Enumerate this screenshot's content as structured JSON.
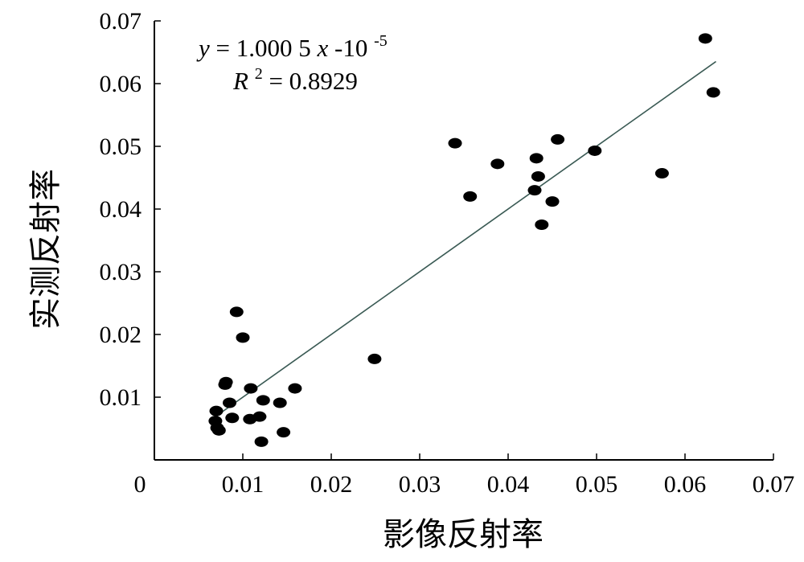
{
  "chart_data": {
    "type": "scatter",
    "xlabel": "影像反射率",
    "ylabel": "实测反射率",
    "xlim": [
      0,
      0.07
    ],
    "ylim": [
      0,
      0.07
    ],
    "x_ticks": [
      "0",
      "0.01",
      "0.02",
      "0.03",
      "0.04",
      "0.05",
      "0.06",
      "0.07"
    ],
    "y_ticks": [
      "0.01",
      "0.02",
      "0.03",
      "0.04",
      "0.05",
      "0.06",
      "0.07"
    ],
    "grid": false,
    "annotation": {
      "equation": {
        "y": "y",
        "equals_coef": " = 1.000 5",
        "x": "x",
        "minus": "-10",
        "exp": "-5"
      },
      "r2": {
        "r": "R",
        "sup": "2",
        "value": " = 0.8929"
      }
    },
    "fit_line": {
      "slope": 1.0005,
      "intercept": -1e-05,
      "x_range": [
        0.0068,
        0.0635
      ]
    },
    "points": [
      {
        "x": 0.007,
        "y": 0.0078
      },
      {
        "x": 0.0069,
        "y": 0.0062
      },
      {
        "x": 0.0073,
        "y": 0.0047
      },
      {
        "x": 0.0071,
        "y": 0.0051
      },
      {
        "x": 0.008,
        "y": 0.012
      },
      {
        "x": 0.0081,
        "y": 0.0124
      },
      {
        "x": 0.0085,
        "y": 0.0091
      },
      {
        "x": 0.0088,
        "y": 0.0067
      },
      {
        "x": 0.0093,
        "y": 0.0236
      },
      {
        "x": 0.01,
        "y": 0.0195
      },
      {
        "x": 0.0109,
        "y": 0.0114
      },
      {
        "x": 0.0108,
        "y": 0.0065
      },
      {
        "x": 0.0119,
        "y": 0.0069
      },
      {
        "x": 0.0123,
        "y": 0.0095
      },
      {
        "x": 0.0121,
        "y": 0.0029
      },
      {
        "x": 0.0142,
        "y": 0.0091
      },
      {
        "x": 0.0146,
        "y": 0.0044
      },
      {
        "x": 0.0159,
        "y": 0.0114
      },
      {
        "x": 0.0249,
        "y": 0.0161
      },
      {
        "x": 0.034,
        "y": 0.0505
      },
      {
        "x": 0.0357,
        "y": 0.042
      },
      {
        "x": 0.0388,
        "y": 0.0472
      },
      {
        "x": 0.043,
        "y": 0.043
      },
      {
        "x": 0.0432,
        "y": 0.0481
      },
      {
        "x": 0.0434,
        "y": 0.0452
      },
      {
        "x": 0.0438,
        "y": 0.0375
      },
      {
        "x": 0.045,
        "y": 0.0412
      },
      {
        "x": 0.0456,
        "y": 0.0511
      },
      {
        "x": 0.0498,
        "y": 0.0493
      },
      {
        "x": 0.0574,
        "y": 0.0457
      },
      {
        "x": 0.0623,
        "y": 0.0672
      },
      {
        "x": 0.0632,
        "y": 0.0586
      }
    ]
  }
}
